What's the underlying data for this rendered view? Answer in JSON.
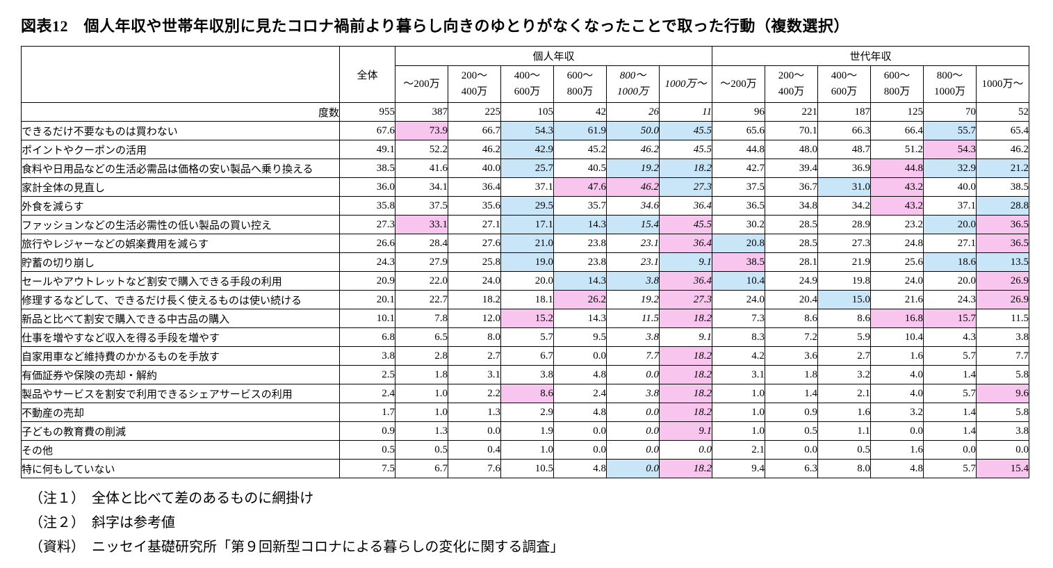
{
  "colors": {
    "highlight_above_overall": "#F7C5EE",
    "highlight_below_overall": "#C9E6F8",
    "border": "#000000",
    "text": "#000000"
  },
  "notes": [
    "（注１）　全体と比べて差のあるものに網掛け",
    "（注２）　斜字は参考値",
    "（資料）　ニッセイ基礎研究所「第９回新型コロナによる暮らしの変化に関する調査」"
  ],
  "chart_data": {
    "type": "table",
    "title": "図表12　個人年収や世帯年収別に見たコロナ禍前より暮らし向きのゆとりがなくなったことで取った行動（複数選択）",
    "overall_header": "全体",
    "group_headers": [
      "個人年収",
      "世代年収"
    ],
    "income_columns": [
      {
        "line1": "～200万",
        "line2": ""
      },
      {
        "line1": "200～",
        "line2": "400万"
      },
      {
        "line1": "400～",
        "line2": "600万"
      },
      {
        "line1": "600～",
        "line2": "800万"
      },
      {
        "line1": "800～",
        "line2": "1000万"
      },
      {
        "line1": "1000万～",
        "line2": ""
      }
    ],
    "italic_personal_column_indexes": [
      4,
      5
    ],
    "freq_label": "度数",
    "frequencies": {
      "overall": "955",
      "personal": [
        "387",
        "225",
        "105",
        "42",
        "26",
        "11"
      ],
      "household": [
        "96",
        "221",
        "187",
        "125",
        "70",
        "52"
      ]
    },
    "rows": [
      {
        "label": "できるだけ不要なものは買わない",
        "overall": "67.6",
        "personal": [
          [
            "73.9",
            "p"
          ],
          [
            "66.7",
            ""
          ],
          [
            "54.3",
            "b"
          ],
          [
            "61.9",
            "b"
          ],
          [
            "50.0",
            "b"
          ],
          [
            "45.5",
            "b"
          ]
        ],
        "household": [
          [
            "65.6",
            ""
          ],
          [
            "70.1",
            ""
          ],
          [
            "66.3",
            ""
          ],
          [
            "66.4",
            ""
          ],
          [
            "55.7",
            "b"
          ],
          [
            "65.4",
            ""
          ]
        ]
      },
      {
        "label": "ポイントやクーポンの活用",
        "overall": "49.1",
        "personal": [
          [
            "52.2",
            ""
          ],
          [
            "46.2",
            ""
          ],
          [
            "42.9",
            "b"
          ],
          [
            "45.2",
            ""
          ],
          [
            "46.2",
            ""
          ],
          [
            "45.5",
            ""
          ]
        ],
        "household": [
          [
            "44.8",
            ""
          ],
          [
            "48.0",
            ""
          ],
          [
            "48.7",
            ""
          ],
          [
            "51.2",
            ""
          ],
          [
            "54.3",
            "p"
          ],
          [
            "46.2",
            ""
          ]
        ]
      },
      {
        "label": "食料や日用品などの生活必需品は価格の安い製品へ乗り換える",
        "overall": "38.5",
        "personal": [
          [
            "41.6",
            ""
          ],
          [
            "40.0",
            ""
          ],
          [
            "25.7",
            "b"
          ],
          [
            "40.5",
            ""
          ],
          [
            "19.2",
            "b"
          ],
          [
            "18.2",
            "b"
          ]
        ],
        "household": [
          [
            "42.7",
            ""
          ],
          [
            "39.4",
            ""
          ],
          [
            "36.9",
            ""
          ],
          [
            "44.8",
            "p"
          ],
          [
            "32.9",
            "b"
          ],
          [
            "21.2",
            "b"
          ]
        ]
      },
      {
        "label": "家計全体の見直し",
        "overall": "36.0",
        "personal": [
          [
            "34.1",
            ""
          ],
          [
            "36.4",
            ""
          ],
          [
            "37.1",
            ""
          ],
          [
            "47.6",
            "p"
          ],
          [
            "46.2",
            "p"
          ],
          [
            "27.3",
            "b"
          ]
        ],
        "household": [
          [
            "37.5",
            ""
          ],
          [
            "36.7",
            ""
          ],
          [
            "31.0",
            "b"
          ],
          [
            "43.2",
            "p"
          ],
          [
            "40.0",
            ""
          ],
          [
            "38.5",
            ""
          ]
        ]
      },
      {
        "label": "外食を減らす",
        "overall": "35.8",
        "personal": [
          [
            "37.5",
            ""
          ],
          [
            "35.6",
            ""
          ],
          [
            "29.5",
            "b"
          ],
          [
            "35.7",
            ""
          ],
          [
            "34.6",
            ""
          ],
          [
            "36.4",
            ""
          ]
        ],
        "household": [
          [
            "36.5",
            ""
          ],
          [
            "34.8",
            ""
          ],
          [
            "34.2",
            ""
          ],
          [
            "43.2",
            "p"
          ],
          [
            "37.1",
            ""
          ],
          [
            "28.8",
            "b"
          ]
        ]
      },
      {
        "label": "ファッションなどの生活必需性の低い製品の買い控え",
        "overall": "27.3",
        "personal": [
          [
            "33.1",
            "p"
          ],
          [
            "27.1",
            ""
          ],
          [
            "17.1",
            "b"
          ],
          [
            "14.3",
            "b"
          ],
          [
            "15.4",
            "b"
          ],
          [
            "45.5",
            "p"
          ]
        ],
        "household": [
          [
            "30.2",
            ""
          ],
          [
            "28.5",
            ""
          ],
          [
            "28.9",
            ""
          ],
          [
            "23.2",
            ""
          ],
          [
            "20.0",
            "b"
          ],
          [
            "36.5",
            "p"
          ]
        ]
      },
      {
        "label": "旅行やレジャーなどの娯楽費用を減らす",
        "overall": "26.6",
        "personal": [
          [
            "28.4",
            ""
          ],
          [
            "27.6",
            ""
          ],
          [
            "21.0",
            "b"
          ],
          [
            "23.8",
            ""
          ],
          [
            "23.1",
            ""
          ],
          [
            "36.4",
            "p"
          ]
        ],
        "household": [
          [
            "20.8",
            "b"
          ],
          [
            "28.5",
            ""
          ],
          [
            "27.3",
            ""
          ],
          [
            "24.8",
            ""
          ],
          [
            "27.1",
            ""
          ],
          [
            "36.5",
            "p"
          ]
        ]
      },
      {
        "label": "貯蓄の切り崩し",
        "overall": "24.3",
        "personal": [
          [
            "27.9",
            ""
          ],
          [
            "25.8",
            ""
          ],
          [
            "19.0",
            "b"
          ],
          [
            "23.8",
            ""
          ],
          [
            "23.1",
            ""
          ],
          [
            "9.1",
            "b"
          ]
        ],
        "household": [
          [
            "38.5",
            "p"
          ],
          [
            "28.1",
            ""
          ],
          [
            "21.9",
            ""
          ],
          [
            "25.6",
            ""
          ],
          [
            "18.6",
            "b"
          ],
          [
            "13.5",
            "b"
          ]
        ]
      },
      {
        "label": "セールやアウトレットなど割安で購入できる手段の利用",
        "overall": "20.9",
        "personal": [
          [
            "22.0",
            ""
          ],
          [
            "24.0",
            ""
          ],
          [
            "20.0",
            ""
          ],
          [
            "14.3",
            "b"
          ],
          [
            "3.8",
            "b"
          ],
          [
            "36.4",
            "p"
          ]
        ],
        "household": [
          [
            "10.4",
            "b"
          ],
          [
            "24.9",
            ""
          ],
          [
            "19.8",
            ""
          ],
          [
            "24.0",
            ""
          ],
          [
            "20.0",
            ""
          ],
          [
            "26.9",
            "p"
          ]
        ]
      },
      {
        "label": "修理するなどして、できるだけ長く使えるものは使い続ける",
        "overall": "20.1",
        "personal": [
          [
            "22.7",
            ""
          ],
          [
            "18.2",
            ""
          ],
          [
            "18.1",
            ""
          ],
          [
            "26.2",
            "p"
          ],
          [
            "19.2",
            ""
          ],
          [
            "27.3",
            "p"
          ]
        ],
        "household": [
          [
            "24.0",
            ""
          ],
          [
            "20.4",
            ""
          ],
          [
            "15.0",
            "b"
          ],
          [
            "21.6",
            ""
          ],
          [
            "24.3",
            ""
          ],
          [
            "26.9",
            "p"
          ]
        ]
      },
      {
        "label": "新品と比べて割安で購入できる中古品の購入",
        "overall": "10.1",
        "personal": [
          [
            "7.8",
            ""
          ],
          [
            "12.0",
            ""
          ],
          [
            "15.2",
            "p"
          ],
          [
            "14.3",
            ""
          ],
          [
            "11.5",
            ""
          ],
          [
            "18.2",
            "p"
          ]
        ],
        "household": [
          [
            "7.3",
            ""
          ],
          [
            "8.6",
            ""
          ],
          [
            "8.6",
            ""
          ],
          [
            "16.8",
            "p"
          ],
          [
            "15.7",
            "p"
          ],
          [
            "11.5",
            ""
          ]
        ]
      },
      {
        "label": "仕事を増やすなど収入を得る手段を増やす",
        "overall": "6.8",
        "personal": [
          [
            "6.5",
            ""
          ],
          [
            "8.0",
            ""
          ],
          [
            "5.7",
            ""
          ],
          [
            "9.5",
            ""
          ],
          [
            "3.8",
            ""
          ],
          [
            "9.1",
            ""
          ]
        ],
        "household": [
          [
            "8.3",
            ""
          ],
          [
            "7.2",
            ""
          ],
          [
            "5.9",
            ""
          ],
          [
            "10.4",
            ""
          ],
          [
            "4.3",
            ""
          ],
          [
            "3.8",
            ""
          ]
        ]
      },
      {
        "label": "自家用車など維持費のかかるものを手放す",
        "overall": "3.8",
        "personal": [
          [
            "2.8",
            ""
          ],
          [
            "2.7",
            ""
          ],
          [
            "6.7",
            ""
          ],
          [
            "0.0",
            ""
          ],
          [
            "7.7",
            ""
          ],
          [
            "18.2",
            "p"
          ]
        ],
        "household": [
          [
            "4.2",
            ""
          ],
          [
            "3.6",
            ""
          ],
          [
            "2.7",
            ""
          ],
          [
            "1.6",
            ""
          ],
          [
            "5.7",
            ""
          ],
          [
            "7.7",
            ""
          ]
        ]
      },
      {
        "label": "有価証券や保険の売却・解約",
        "overall": "2.5",
        "personal": [
          [
            "1.8",
            ""
          ],
          [
            "3.1",
            ""
          ],
          [
            "3.8",
            ""
          ],
          [
            "4.8",
            ""
          ],
          [
            "0.0",
            ""
          ],
          [
            "18.2",
            "p"
          ]
        ],
        "household": [
          [
            "3.1",
            ""
          ],
          [
            "1.8",
            ""
          ],
          [
            "3.2",
            ""
          ],
          [
            "4.0",
            ""
          ],
          [
            "1.4",
            ""
          ],
          [
            "5.8",
            ""
          ]
        ]
      },
      {
        "label": "製品やサービスを割安で利用できるシェアサービスの利用",
        "overall": "2.4",
        "personal": [
          [
            "1.0",
            ""
          ],
          [
            "2.2",
            ""
          ],
          [
            "8.6",
            "p"
          ],
          [
            "2.4",
            ""
          ],
          [
            "3.8",
            ""
          ],
          [
            "18.2",
            "p"
          ]
        ],
        "household": [
          [
            "1.0",
            ""
          ],
          [
            "1.4",
            ""
          ],
          [
            "2.1",
            ""
          ],
          [
            "4.0",
            ""
          ],
          [
            "5.7",
            ""
          ],
          [
            "9.6",
            "p"
          ]
        ]
      },
      {
        "label": "不動産の売却",
        "overall": "1.7",
        "personal": [
          [
            "1.0",
            ""
          ],
          [
            "1.3",
            ""
          ],
          [
            "2.9",
            ""
          ],
          [
            "4.8",
            ""
          ],
          [
            "0.0",
            ""
          ],
          [
            "18.2",
            "p"
          ]
        ],
        "household": [
          [
            "1.0",
            ""
          ],
          [
            "0.9",
            ""
          ],
          [
            "1.6",
            ""
          ],
          [
            "3.2",
            ""
          ],
          [
            "1.4",
            ""
          ],
          [
            "5.8",
            ""
          ]
        ]
      },
      {
        "label": "子どもの教育費の削減",
        "overall": "0.9",
        "personal": [
          [
            "1.3",
            ""
          ],
          [
            "0.0",
            ""
          ],
          [
            "1.9",
            ""
          ],
          [
            "0.0",
            ""
          ],
          [
            "0.0",
            ""
          ],
          [
            "9.1",
            "p"
          ]
        ],
        "household": [
          [
            "1.0",
            ""
          ],
          [
            "0.5",
            ""
          ],
          [
            "1.1",
            ""
          ],
          [
            "0.0",
            ""
          ],
          [
            "1.4",
            ""
          ],
          [
            "3.8",
            ""
          ]
        ]
      },
      {
        "label": "その他",
        "overall": "0.5",
        "personal": [
          [
            "0.5",
            ""
          ],
          [
            "0.4",
            ""
          ],
          [
            "1.0",
            ""
          ],
          [
            "0.0",
            ""
          ],
          [
            "0.0",
            ""
          ],
          [
            "0.0",
            ""
          ]
        ],
        "household": [
          [
            "2.1",
            ""
          ],
          [
            "0.0",
            ""
          ],
          [
            "0.5",
            ""
          ],
          [
            "1.6",
            ""
          ],
          [
            "0.0",
            ""
          ],
          [
            "0.0",
            ""
          ]
        ]
      },
      {
        "label": "特に何もしていない",
        "overall": "7.5",
        "personal": [
          [
            "6.7",
            ""
          ],
          [
            "7.6",
            ""
          ],
          [
            "10.5",
            ""
          ],
          [
            "4.8",
            ""
          ],
          [
            "0.0",
            "b"
          ],
          [
            "18.2",
            "p"
          ]
        ],
        "household": [
          [
            "9.4",
            ""
          ],
          [
            "6.3",
            ""
          ],
          [
            "8.0",
            ""
          ],
          [
            "4.8",
            ""
          ],
          [
            "5.7",
            ""
          ],
          [
            "15.4",
            "p"
          ]
        ]
      }
    ]
  }
}
